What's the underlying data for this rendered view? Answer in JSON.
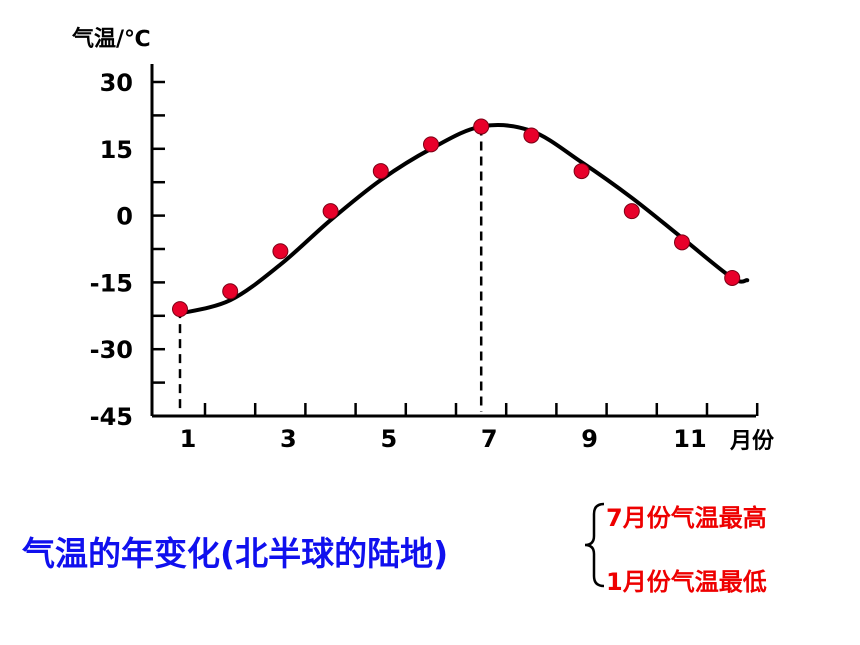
{
  "chart_data": {
    "type": "line",
    "ylabel": "气温/℃",
    "xlabel": "月份",
    "ylim": [
      -45,
      30
    ],
    "yticks": [
      30,
      15,
      0,
      -15,
      -30,
      -45
    ],
    "xticks": [
      1,
      3,
      5,
      7,
      9,
      11
    ],
    "xlim": [
      0.5,
      12.5
    ],
    "points": [
      {
        "x": 1,
        "y": -21
      },
      {
        "x": 2,
        "y": -17
      },
      {
        "x": 3,
        "y": -8
      },
      {
        "x": 4,
        "y": 1
      },
      {
        "x": 5,
        "y": 10
      },
      {
        "x": 6,
        "y": 16
      },
      {
        "x": 7,
        "y": 20
      },
      {
        "x": 8,
        "y": 18
      },
      {
        "x": 9,
        "y": 10
      },
      {
        "x": 10,
        "y": 1
      },
      {
        "x": 11,
        "y": -6
      },
      {
        "x": 12,
        "y": -14
      }
    ],
    "curve": [
      {
        "x": 1,
        "y": -22
      },
      {
        "x": 2,
        "y": -19
      },
      {
        "x": 3,
        "y": -11
      },
      {
        "x": 4,
        "y": -1
      },
      {
        "x": 5,
        "y": 8
      },
      {
        "x": 6,
        "y": 15
      },
      {
        "x": 7,
        "y": 20
      },
      {
        "x": 8,
        "y": 19
      },
      {
        "x": 9,
        "y": 12
      },
      {
        "x": 10,
        "y": 4
      },
      {
        "x": 11,
        "y": -5
      },
      {
        "x": 12,
        "y": -14
      }
    ],
    "dashed_markers_x": [
      1,
      7
    ],
    "marker_color": "#e8002a",
    "curve_color": "#000000"
  },
  "caption": "气温的年变化(北半球的陆地)",
  "notes": [
    "7月份气温最高",
    "1月份气温最低"
  ],
  "colors": {
    "caption": "#1010ee",
    "notes": "#ee0000"
  }
}
